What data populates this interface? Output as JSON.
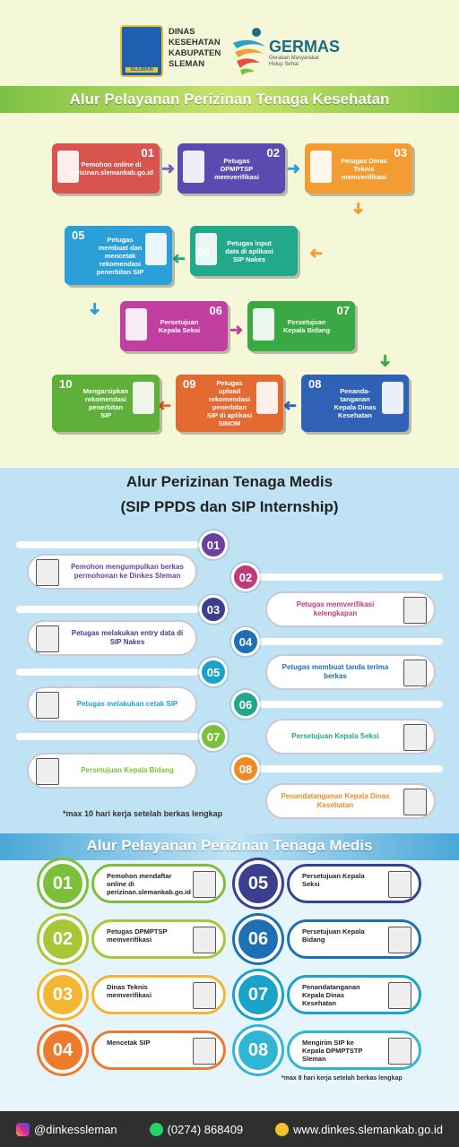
{
  "header": {
    "dinas_lines": [
      "DINAS",
      "KESEHATAN",
      "KABUPATEN",
      "SLEMAN"
    ],
    "germas_title": "GERMAS",
    "germas_sub": "Gerakan Masyarakat Hidup Sehat",
    "seal_label": "SLEMAN"
  },
  "section1": {
    "title": "Alur Pelayanan Perizinan Tenaga Kesehatan",
    "steps": [
      {
        "num": "01",
        "text": "Pemohon online di perizinan.slemankab.go.id",
        "color": "#d9534f"
      },
      {
        "num": "02",
        "text": "Petugas DPMPTSP memverifikasi",
        "color": "#5b4bb0"
      },
      {
        "num": "03",
        "text": "Petugas Dinas Teknis memverifikasi",
        "color": "#f39c34"
      },
      {
        "num": "04",
        "text": "Petugas input data di aplikasi SIP Nakes",
        "color": "#22a98b"
      },
      {
        "num": "05",
        "text": "Petugas membuat dan mencetak rekomendasi penerbitan SIP",
        "color": "#2a9fd8"
      },
      {
        "num": "06",
        "text": "Persetujuan Kepala Seksi",
        "color": "#c03fa0"
      },
      {
        "num": "07",
        "text": "Persetujuan Kepala Bidang",
        "color": "#3aa843"
      },
      {
        "num": "08",
        "text": "Penanda-tanganan Kepala Dinas Kesehatan",
        "color": "#2f61b7"
      },
      {
        "num": "09",
        "text": "Petugas upload rekomendasi penerbitan SIP di aplikasi SINOM",
        "color": "#e36a30"
      },
      {
        "num": "10",
        "text": "Mengarsipkan rekomendasi penerbitan SIP",
        "color": "#5fb03a"
      }
    ]
  },
  "section2": {
    "title_line1": "Alur Perizinan Tenaga Medis",
    "title_line2": "(SIP PPDS dan SIP Internship)",
    "steps": [
      {
        "num": "01",
        "text": "Pemohon mengumpulkan berkas permohonan ke Dinkes Sleman",
        "color": "#6a3fa0"
      },
      {
        "num": "02",
        "text": "Petugas memverifikasi kelengkapan",
        "color": "#c0397d"
      },
      {
        "num": "03",
        "text": "Petugas melakukan entry data di SIP Nakes",
        "color": "#3b3f8f"
      },
      {
        "num": "04",
        "text": "Petugas membuat tanda terima berkas",
        "color": "#1f6fb5"
      },
      {
        "num": "05",
        "text": "Petugas melakukan cetak SIP",
        "color": "#1aa3c8"
      },
      {
        "num": "06",
        "text": "Persetujuan Kepala Seksi",
        "color": "#20a88a"
      },
      {
        "num": "07",
        "text": "Persetujuan Kepala Bidang",
        "color": "#7bbf3a"
      },
      {
        "num": "08",
        "text": "Penandatanganan Kepala Dinas Kesehatan",
        "color": "#f08a24"
      }
    ],
    "note": "*max 10 hari kerja setelah berkas lengkap"
  },
  "section3": {
    "title": "Alur Pelayanan Perizinan Tenaga Medis",
    "steps": [
      {
        "num": "01",
        "text": "Pemohon mendaftar online di perizinan.slemankab.go.id",
        "color": "#7bbf3a"
      },
      {
        "num": "02",
        "text": "Petugas DPMPTSP memverifikasi",
        "color": "#a6c736"
      },
      {
        "num": "03",
        "text": "Dinas Teknis memverifikasi",
        "color": "#f2b632"
      },
      {
        "num": "04",
        "text": "Mencetak SIP",
        "color": "#ee7a2c"
      },
      {
        "num": "05",
        "text": "Persetujuan Kepala Seksi",
        "color": "#3b3f8f"
      },
      {
        "num": "06",
        "text": "Persetujuan Kepala Bidang",
        "color": "#1f6fb5"
      },
      {
        "num": "07",
        "text": "Penandatanganan Kepala Dinas Kesehatan",
        "color": "#1aa3c8"
      },
      {
        "num": "08",
        "text": "Mengirim SIP ke Kepala DPMPTSTP Sleman",
        "color": "#2fb6d6"
      }
    ],
    "note": "*max 8 hari kerja setelah berkas lengkap"
  },
  "footer": {
    "instagram": "@dinkessleman",
    "phone": "(0274) 868409",
    "website": "www.dinkes.slemankab.go.id"
  }
}
